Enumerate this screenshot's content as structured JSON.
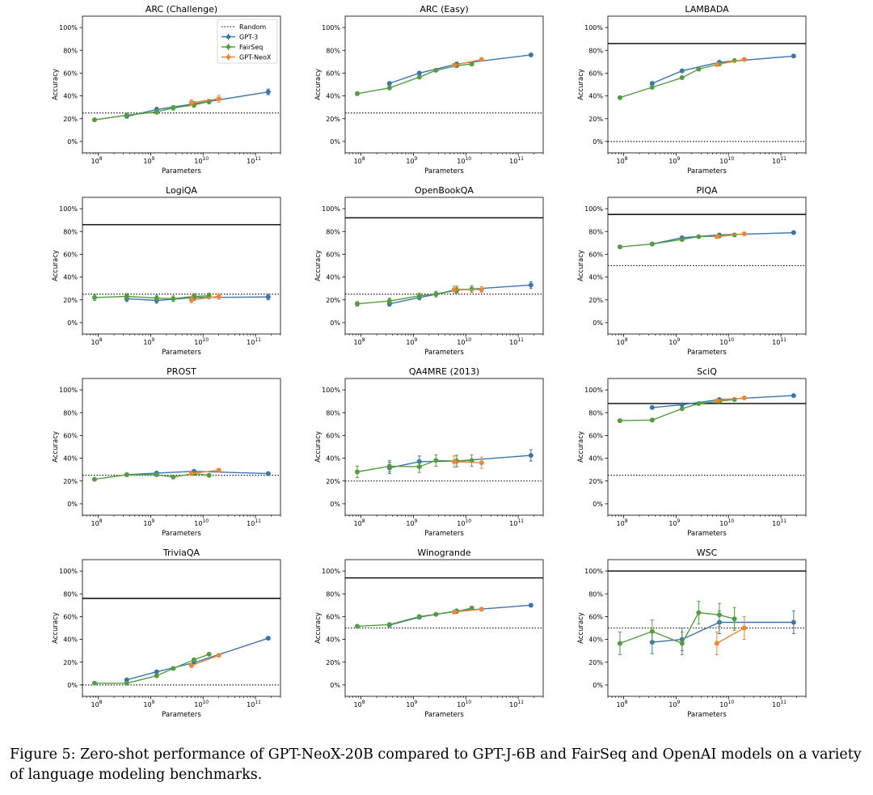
{
  "caption": "Figure 5: Zero-shot performance of GPT-NeoX-20B compared to GPT-J-6B and FairSeq and OpenAI models on a variety of language modeling benchmarks.",
  "colors": {
    "GPT-3": "#3b75af",
    "FairSeq": "#519e3e",
    "GPT-NeoX": "#ef8636",
    "human": "#000000",
    "random": "#000000"
  },
  "legend": {
    "placement": "top-right of first panel",
    "entries": [
      "Random",
      "GPT-3",
      "FairSeq",
      "GPT-NeoX"
    ]
  },
  "axes": {
    "xlabel": "Parameters",
    "ylabel": "Accuracy",
    "xscale": "log",
    "xlim": [
      50000000,
      300000000000
    ],
    "ylim": [
      -0.1,
      1.1
    ],
    "ytick_values": [
      0,
      0.2,
      0.4,
      0.6,
      0.8,
      1.0
    ],
    "ytick_labels": [
      "0%",
      "20%",
      "40%",
      "60%",
      "80%",
      "100%"
    ],
    "xtick_values": [
      100000000,
      1000000000,
      10000000000,
      100000000000
    ],
    "xtick_bases": [
      "10",
      "10",
      "10",
      "10"
    ],
    "xtick_exps": [
      "8",
      "9",
      "10",
      "11"
    ]
  },
  "chart_data": [
    {
      "type": "line",
      "title": "ARC (Challenge)",
      "random": 0.25,
      "human": null,
      "show_legend": true,
      "series": [
        {
          "name": "GPT-3",
          "x": [
            350000000,
            1300000000,
            6700000000,
            175000000000
          ],
          "y": [
            0.22,
            0.28,
            0.33,
            0.435
          ],
          "err": [
            0.015,
            0.02,
            0.02,
            0.025
          ]
        },
        {
          "name": "FairSeq",
          "x": [
            85000000,
            350000000,
            1300000000,
            2700000000,
            6700000000,
            13000000000
          ],
          "y": [
            0.19,
            0.23,
            0.26,
            0.295,
            0.32,
            0.35
          ],
          "err": [
            0.015,
            0.02,
            0.02,
            0.02,
            0.02,
            0.02
          ]
        },
        {
          "name": "GPT-NeoX",
          "x": [
            6000000000,
            20000000000
          ],
          "y": [
            0.34,
            0.375
          ],
          "err": [
            0.025,
            0.03
          ]
        }
      ]
    },
    {
      "type": "line",
      "title": "ARC (Easy)",
      "random": 0.25,
      "human": null,
      "show_legend": false,
      "series": [
        {
          "name": "GPT-3",
          "x": [
            350000000,
            1300000000,
            6700000000,
            175000000000
          ],
          "y": [
            0.51,
            0.6,
            0.68,
            0.76
          ],
          "err": [
            0.015,
            0.015,
            0.015,
            0.012
          ]
        },
        {
          "name": "FairSeq",
          "x": [
            85000000,
            350000000,
            1300000000,
            2700000000,
            6700000000,
            13000000000
          ],
          "y": [
            0.42,
            0.47,
            0.565,
            0.625,
            0.665,
            0.68
          ],
          "err": [
            0.015,
            0.015,
            0.015,
            0.015,
            0.015,
            0.015
          ]
        },
        {
          "name": "GPT-NeoX",
          "x": [
            6000000000,
            20000000000
          ],
          "y": [
            0.67,
            0.72
          ],
          "err": [
            0.015,
            0.015
          ]
        }
      ]
    },
    {
      "type": "line",
      "title": "LAMBADA",
      "random": 0.0,
      "human": 0.86,
      "show_legend": false,
      "series": [
        {
          "name": "GPT-3",
          "x": [
            350000000,
            1300000000,
            6700000000,
            175000000000
          ],
          "y": [
            0.51,
            0.62,
            0.695,
            0.75
          ],
          "err": [
            0.01,
            0.01,
            0.01,
            0.01
          ]
        },
        {
          "name": "FairSeq",
          "x": [
            85000000,
            350000000,
            1300000000,
            2700000000,
            6700000000,
            13000000000
          ],
          "y": [
            0.385,
            0.475,
            0.56,
            0.635,
            0.68,
            0.71
          ],
          "err": [
            0.01,
            0.01,
            0.01,
            0.01,
            0.01,
            0.01
          ]
        },
        {
          "name": "GPT-NeoX",
          "x": [
            6000000000,
            20000000000
          ],
          "y": [
            0.675,
            0.72
          ],
          "err": [
            0.01,
            0.01
          ]
        }
      ]
    },
    {
      "type": "line",
      "title": "LogiQA",
      "random": 0.25,
      "human": 0.86,
      "show_legend": false,
      "series": [
        {
          "name": "GPT-3",
          "x": [
            350000000,
            1300000000,
            6700000000,
            175000000000
          ],
          "y": [
            0.21,
            0.195,
            0.22,
            0.225
          ],
          "err": [
            0.025,
            0.025,
            0.025,
            0.025
          ]
        },
        {
          "name": "FairSeq",
          "x": [
            85000000,
            350000000,
            1300000000,
            2700000000,
            6700000000,
            13000000000
          ],
          "y": [
            0.22,
            0.23,
            0.215,
            0.21,
            0.23,
            0.235
          ],
          "err": [
            0.025,
            0.025,
            0.025,
            0.025,
            0.025,
            0.025
          ]
        },
        {
          "name": "GPT-NeoX",
          "x": [
            6000000000,
            20000000000
          ],
          "y": [
            0.2,
            0.23
          ],
          "err": [
            0.025,
            0.025
          ]
        }
      ]
    },
    {
      "type": "line",
      "title": "OpenBookQA",
      "random": 0.25,
      "human": 0.92,
      "show_legend": false,
      "series": [
        {
          "name": "GPT-3",
          "x": [
            350000000,
            1300000000,
            6700000000,
            175000000000
          ],
          "y": [
            0.165,
            0.22,
            0.285,
            0.33
          ],
          "err": [
            0.02,
            0.02,
            0.02,
            0.03
          ]
        },
        {
          "name": "FairSeq",
          "x": [
            85000000,
            350000000,
            1300000000,
            2700000000,
            6700000000,
            13000000000
          ],
          "y": [
            0.165,
            0.19,
            0.235,
            0.25,
            0.29,
            0.295
          ],
          "err": [
            0.02,
            0.025,
            0.025,
            0.025,
            0.03,
            0.03
          ]
        },
        {
          "name": "GPT-NeoX",
          "x": [
            6000000000,
            20000000000
          ],
          "y": [
            0.29,
            0.29
          ],
          "err": [
            0.03,
            0.025
          ]
        }
      ]
    },
    {
      "type": "line",
      "title": "PIQA",
      "random": 0.5,
      "human": 0.95,
      "show_legend": false,
      "series": [
        {
          "name": "GPT-3",
          "x": [
            350000000,
            1300000000,
            6700000000,
            175000000000
          ],
          "y": [
            0.69,
            0.745,
            0.77,
            0.79
          ],
          "err": [
            0.012,
            0.012,
            0.012,
            0.012
          ]
        },
        {
          "name": "FairSeq",
          "x": [
            85000000,
            350000000,
            1300000000,
            2700000000,
            6700000000,
            13000000000
          ],
          "y": [
            0.665,
            0.69,
            0.73,
            0.755,
            0.76,
            0.77
          ],
          "err": [
            0.012,
            0.012,
            0.012,
            0.012,
            0.012,
            0.012
          ]
        },
        {
          "name": "GPT-NeoX",
          "x": [
            6000000000,
            20000000000
          ],
          "y": [
            0.755,
            0.78
          ],
          "err": [
            0.012,
            0.012
          ]
        }
      ]
    },
    {
      "type": "line",
      "title": "PROST",
      "random": 0.25,
      "human": null,
      "show_legend": false,
      "series": [
        {
          "name": "GPT-3",
          "x": [
            350000000,
            1300000000,
            6700000000,
            175000000000
          ],
          "y": [
            0.255,
            0.27,
            0.285,
            0.265
          ],
          "err": [
            0.004,
            0.004,
            0.004,
            0.004
          ]
        },
        {
          "name": "FairSeq",
          "x": [
            85000000,
            350000000,
            1300000000,
            2700000000,
            6700000000,
            13000000000
          ],
          "y": [
            0.215,
            0.255,
            0.255,
            0.235,
            0.265,
            0.25
          ],
          "err": [
            0.004,
            0.004,
            0.004,
            0.004,
            0.004,
            0.004
          ]
        },
        {
          "name": "GPT-NeoX",
          "x": [
            6000000000,
            20000000000
          ],
          "y": [
            0.265,
            0.295
          ],
          "err": [
            0.004,
            0.004
          ]
        }
      ]
    },
    {
      "type": "line",
      "title": "QA4MRE (2013)",
      "random": 0.2,
      "human": null,
      "show_legend": false,
      "series": [
        {
          "name": "GPT-3",
          "x": [
            350000000,
            1300000000,
            6700000000,
            175000000000
          ],
          "y": [
            0.315,
            0.37,
            0.375,
            0.425
          ],
          "err": [
            0.05,
            0.05,
            0.05,
            0.05
          ]
        },
        {
          "name": "FairSeq",
          "x": [
            85000000,
            350000000,
            1300000000,
            2700000000,
            6700000000,
            13000000000
          ],
          "y": [
            0.28,
            0.33,
            0.325,
            0.38,
            0.375,
            0.38
          ],
          "err": [
            0.05,
            0.05,
            0.05,
            0.05,
            0.05,
            0.05
          ]
        },
        {
          "name": "GPT-NeoX",
          "x": [
            6000000000,
            20000000000
          ],
          "y": [
            0.37,
            0.36
          ],
          "err": [
            0.05,
            0.05
          ]
        }
      ]
    },
    {
      "type": "line",
      "title": "SciQ",
      "random": 0.25,
      "human": 0.88,
      "show_legend": false,
      "series": [
        {
          "name": "GPT-3",
          "x": [
            350000000,
            1300000000,
            6700000000,
            175000000000
          ],
          "y": [
            0.845,
            0.87,
            0.915,
            0.95
          ],
          "err": [
            0.012,
            0.012,
            0.012,
            0.008
          ]
        },
        {
          "name": "FairSeq",
          "x": [
            85000000,
            350000000,
            1300000000,
            2700000000,
            6700000000,
            13000000000
          ],
          "y": [
            0.73,
            0.735,
            0.835,
            0.88,
            0.9,
            0.915
          ],
          "err": [
            0.015,
            0.015,
            0.012,
            0.012,
            0.01,
            0.01
          ]
        },
        {
          "name": "GPT-NeoX",
          "x": [
            6000000000,
            20000000000
          ],
          "y": [
            0.905,
            0.93
          ],
          "err": [
            0.01,
            0.008
          ]
        }
      ]
    },
    {
      "type": "line",
      "title": "TriviaQA",
      "random": 0.0,
      "human": 0.76,
      "show_legend": false,
      "series": [
        {
          "name": "GPT-3",
          "x": [
            350000000,
            1300000000,
            6700000000,
            175000000000
          ],
          "y": [
            0.045,
            0.115,
            0.195,
            0.41
          ],
          "err": [
            0.004,
            0.004,
            0.004,
            0.004
          ]
        },
        {
          "name": "FairSeq",
          "x": [
            85000000,
            350000000,
            1300000000,
            2700000000,
            6700000000,
            13000000000
          ],
          "y": [
            0.015,
            0.015,
            0.08,
            0.145,
            0.22,
            0.27
          ],
          "err": [
            0.004,
            0.004,
            0.004,
            0.004,
            0.004,
            0.004
          ]
        },
        {
          "name": "GPT-NeoX",
          "x": [
            6000000000,
            20000000000
          ],
          "y": [
            0.17,
            0.26
          ],
          "err": [
            0.004,
            0.004
          ]
        }
      ]
    },
    {
      "type": "line",
      "title": "Winogrande",
      "random": 0.5,
      "human": 0.94,
      "show_legend": false,
      "series": [
        {
          "name": "GPT-3",
          "x": [
            350000000,
            1300000000,
            6700000000,
            175000000000
          ],
          "y": [
            0.525,
            0.595,
            0.65,
            0.7
          ],
          "err": [
            0.014,
            0.014,
            0.014,
            0.014
          ]
        },
        {
          "name": "FairSeq",
          "x": [
            85000000,
            350000000,
            1300000000,
            2700000000,
            6700000000,
            13000000000
          ],
          "y": [
            0.515,
            0.53,
            0.6,
            0.62,
            0.645,
            0.675
          ],
          "err": [
            0.014,
            0.014,
            0.014,
            0.014,
            0.014,
            0.014
          ]
        },
        {
          "name": "GPT-NeoX",
          "x": [
            6000000000,
            20000000000
          ],
          "y": [
            0.64,
            0.665
          ],
          "err": [
            0.014,
            0.014
          ]
        }
      ]
    },
    {
      "type": "line",
      "title": "WSC",
      "random": 0.5,
      "human": 1.0,
      "show_legend": false,
      "series": [
        {
          "name": "GPT-3",
          "x": [
            350000000,
            1300000000,
            6700000000,
            175000000000
          ],
          "y": [
            0.375,
            0.4,
            0.55,
            0.55
          ],
          "err": [
            0.1,
            0.1,
            0.1,
            0.1
          ]
        },
        {
          "name": "FairSeq",
          "x": [
            85000000,
            350000000,
            1300000000,
            2700000000,
            6700000000,
            13000000000
          ],
          "y": [
            0.365,
            0.47,
            0.365,
            0.635,
            0.615,
            0.58
          ],
          "err": [
            0.1,
            0.1,
            0.1,
            0.1,
            0.1,
            0.1
          ]
        },
        {
          "name": "GPT-NeoX",
          "x": [
            6000000000,
            20000000000
          ],
          "y": [
            0.365,
            0.5
          ],
          "err": [
            0.1,
            0.1
          ]
        }
      ]
    }
  ]
}
